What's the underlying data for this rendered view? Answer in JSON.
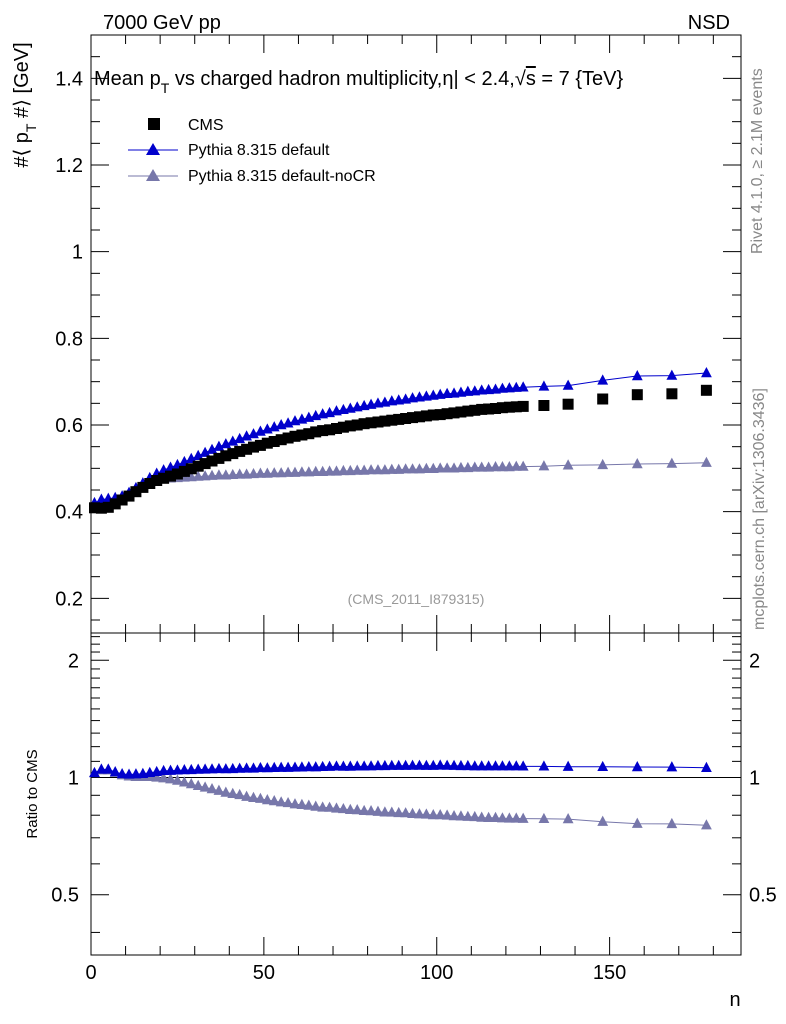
{
  "header": {
    "energy_label": "7000 GeV pp",
    "process_label": "NSD"
  },
  "side_labels": {
    "rivet": "Rivet 4.1.0, ≥ 2.1M events",
    "mcplots": "mcplots.cern.ch [arXiv:1306.3436]"
  },
  "analysis_tag": "(CMS_2011_I879315)",
  "colors": {
    "cms": "#000000",
    "default": "#0000cc",
    "nocr": "#7777aa",
    "axis": "#000000",
    "side_text": "#888888"
  },
  "chart_data": [
    {
      "type": "scatter",
      "title": "Mean p_T vs charged hadron multiplicity, |η| < 2.4, √s = 7 {TeV}",
      "title_parts": {
        "pre": "Mean p",
        "sub": "T",
        "post": " vs charged hadron multiplicity,",
        "eta": "η| < 2.4,",
        "sqrt": "√",
        "s": "s",
        "tail": " = 7 {TeV}"
      },
      "ylabel": "#⟨ p_T #⟩ [GeV]",
      "ylabel_parts": {
        "pre": "#⟨ p",
        "sub": "T",
        "post": " #⟩ [GeV]"
      },
      "xlim": [
        0,
        188
      ],
      "ylim": [
        0.12,
        1.5
      ],
      "yticks": [
        0.2,
        0.4,
        0.6,
        0.8,
        1,
        1.2,
        1.4
      ],
      "ytick_labels": [
        "0.2",
        "0.4",
        "0.6",
        "0.8",
        "1",
        "1.2",
        "1.4"
      ],
      "legend": [
        "CMS",
        "Pythia 8.315 default",
        "Pythia 8.315 default-noCR"
      ],
      "legend_position": "top-left",
      "series": [
        {
          "name": "CMS",
          "x": [
            1,
            3,
            5,
            7,
            9,
            11,
            13,
            15,
            17,
            19,
            21,
            23,
            25,
            27,
            29,
            31,
            33,
            35,
            37,
            39,
            41,
            43,
            45,
            47,
            49,
            51,
            53,
            55,
            57,
            59,
            61,
            63,
            65,
            67,
            69,
            71,
            73,
            75,
            77,
            79,
            81,
            83,
            85,
            87,
            89,
            91,
            93,
            95,
            97,
            99,
            101,
            103,
            105,
            107,
            109,
            111,
            113,
            115,
            117,
            119,
            121,
            123,
            125,
            131,
            138,
            148,
            158,
            168,
            178
          ],
          "y": [
            0.409,
            0.408,
            0.41,
            0.418,
            0.427,
            0.436,
            0.446,
            0.456,
            0.465,
            0.472,
            0.477,
            0.482,
            0.487,
            0.493,
            0.499,
            0.505,
            0.511,
            0.517,
            0.523,
            0.529,
            0.534,
            0.539,
            0.544,
            0.549,
            0.553,
            0.558,
            0.562,
            0.566,
            0.57,
            0.574,
            0.577,
            0.58,
            0.584,
            0.587,
            0.589,
            0.592,
            0.595,
            0.598,
            0.6,
            0.603,
            0.605,
            0.607,
            0.609,
            0.611,
            0.613,
            0.615,
            0.617,
            0.619,
            0.621,
            0.623,
            0.624,
            0.626,
            0.628,
            0.63,
            0.632,
            0.634,
            0.636,
            0.637,
            0.638,
            0.64,
            0.641,
            0.642,
            0.643,
            0.645,
            0.648,
            0.66,
            0.67,
            0.672,
            0.68
          ]
        },
        {
          "name": "Pythia 8.315 default",
          "x": [
            1,
            3,
            5,
            7,
            9,
            11,
            13,
            15,
            17,
            19,
            21,
            23,
            25,
            27,
            29,
            31,
            33,
            35,
            37,
            39,
            41,
            43,
            45,
            47,
            49,
            51,
            53,
            55,
            57,
            59,
            61,
            63,
            65,
            67,
            69,
            71,
            73,
            75,
            77,
            79,
            81,
            83,
            85,
            87,
            89,
            91,
            93,
            95,
            97,
            99,
            101,
            103,
            105,
            107,
            109,
            111,
            113,
            115,
            117,
            119,
            121,
            123,
            125,
            131,
            138,
            148,
            158,
            168,
            178
          ],
          "y": [
            0.42,
            0.428,
            0.43,
            0.432,
            0.436,
            0.444,
            0.455,
            0.466,
            0.478,
            0.488,
            0.496,
            0.502,
            0.508,
            0.515,
            0.522,
            0.529,
            0.536,
            0.543,
            0.55,
            0.556,
            0.562,
            0.568,
            0.574,
            0.579,
            0.585,
            0.59,
            0.595,
            0.6,
            0.604,
            0.609,
            0.613,
            0.617,
            0.621,
            0.625,
            0.628,
            0.632,
            0.635,
            0.638,
            0.641,
            0.644,
            0.647,
            0.65,
            0.652,
            0.655,
            0.657,
            0.659,
            0.662,
            0.664,
            0.666,
            0.668,
            0.67,
            0.672,
            0.673,
            0.675,
            0.677,
            0.678,
            0.68,
            0.681,
            0.682,
            0.684,
            0.685,
            0.686,
            0.687,
            0.689,
            0.691,
            0.703,
            0.713,
            0.714,
            0.72
          ]
        },
        {
          "name": "Pythia 8.315 default-noCR",
          "x": [
            1,
            3,
            5,
            7,
            9,
            11,
            13,
            15,
            17,
            19,
            21,
            23,
            25,
            27,
            29,
            31,
            33,
            35,
            37,
            39,
            41,
            43,
            45,
            47,
            49,
            51,
            53,
            55,
            57,
            59,
            61,
            63,
            65,
            67,
            69,
            71,
            73,
            75,
            77,
            79,
            81,
            83,
            85,
            87,
            89,
            91,
            93,
            95,
            97,
            99,
            101,
            103,
            105,
            107,
            109,
            111,
            113,
            115,
            117,
            119,
            121,
            123,
            125,
            131,
            138,
            148,
            158,
            168,
            178
          ],
          "y": [
            0.42,
            0.426,
            0.428,
            0.43,
            0.433,
            0.439,
            0.448,
            0.458,
            0.467,
            0.472,
            0.475,
            0.477,
            0.478,
            0.479,
            0.48,
            0.481,
            0.482,
            0.483,
            0.484,
            0.484,
            0.485,
            0.486,
            0.486,
            0.487,
            0.488,
            0.488,
            0.489,
            0.489,
            0.49,
            0.49,
            0.491,
            0.491,
            0.492,
            0.492,
            0.493,
            0.493,
            0.494,
            0.494,
            0.495,
            0.495,
            0.496,
            0.496,
            0.496,
            0.497,
            0.497,
            0.498,
            0.498,
            0.498,
            0.499,
            0.499,
            0.5,
            0.5,
            0.5,
            0.501,
            0.501,
            0.502,
            0.502,
            0.502,
            0.503,
            0.503,
            0.503,
            0.504,
            0.504,
            0.505,
            0.507,
            0.508,
            0.51,
            0.511,
            0.513
          ]
        }
      ]
    },
    {
      "type": "line",
      "ylabel": "Ratio to CMS",
      "xlabel": "n",
      "xlim": [
        0,
        188
      ],
      "ylim": [
        0.35,
        2.35
      ],
      "yscale": "log",
      "yticks": [
        0.5,
        1,
        2
      ],
      "ytick_labels": [
        "0.5",
        "1",
        "2"
      ],
      "xticks": [
        0,
        50,
        100,
        150
      ],
      "xtick_labels": [
        "0",
        "50",
        "100",
        "150"
      ],
      "reference_line": 1,
      "series": [
        {
          "name": "Pythia 8.315 default",
          "x": [
            1,
            3,
            5,
            7,
            9,
            11,
            13,
            15,
            17,
            19,
            21,
            23,
            25,
            27,
            29,
            31,
            33,
            35,
            37,
            39,
            41,
            43,
            45,
            47,
            49,
            51,
            53,
            55,
            57,
            59,
            61,
            63,
            65,
            67,
            69,
            71,
            73,
            75,
            77,
            79,
            81,
            83,
            85,
            87,
            89,
            91,
            93,
            95,
            97,
            99,
            101,
            103,
            105,
            107,
            109,
            111,
            113,
            115,
            117,
            119,
            121,
            123,
            125,
            131,
            138,
            148,
            158,
            168,
            178
          ],
          "y": [
            1.027,
            1.049,
            1.049,
            1.033,
            1.021,
            1.018,
            1.02,
            1.022,
            1.028,
            1.034,
            1.04,
            1.041,
            1.043,
            1.045,
            1.046,
            1.048,
            1.049,
            1.05,
            1.052,
            1.051,
            1.052,
            1.054,
            1.055,
            1.055,
            1.058,
            1.057,
            1.059,
            1.06,
            1.06,
            1.061,
            1.062,
            1.064,
            1.063,
            1.065,
            1.066,
            1.068,
            1.067,
            1.067,
            1.068,
            1.068,
            1.069,
            1.071,
            1.071,
            1.072,
            1.072,
            1.072,
            1.073,
            1.073,
            1.072,
            1.072,
            1.074,
            1.073,
            1.072,
            1.071,
            1.071,
            1.069,
            1.069,
            1.069,
            1.069,
            1.069,
            1.069,
            1.069,
            1.068,
            1.068,
            1.066,
            1.065,
            1.064,
            1.063,
            1.059
          ]
        },
        {
          "name": "Pythia 8.315 default-noCR",
          "x": [
            1,
            3,
            5,
            7,
            9,
            11,
            13,
            15,
            17,
            19,
            21,
            23,
            25,
            27,
            29,
            31,
            33,
            35,
            37,
            39,
            41,
            43,
            45,
            47,
            49,
            51,
            53,
            55,
            57,
            59,
            61,
            63,
            65,
            67,
            69,
            71,
            73,
            75,
            77,
            79,
            81,
            83,
            85,
            87,
            89,
            91,
            93,
            95,
            97,
            99,
            101,
            103,
            105,
            107,
            109,
            111,
            113,
            115,
            117,
            119,
            121,
            123,
            125,
            131,
            138,
            148,
            158,
            168,
            178
          ],
          "y": [
            1.027,
            1.044,
            1.044,
            1.029,
            1.014,
            1.007,
            1.004,
            1.004,
            1.004,
            1.0,
            0.996,
            0.99,
            0.982,
            0.972,
            0.962,
            0.952,
            0.943,
            0.934,
            0.925,
            0.915,
            0.908,
            0.902,
            0.893,
            0.887,
            0.882,
            0.875,
            0.87,
            0.864,
            0.86,
            0.854,
            0.851,
            0.847,
            0.842,
            0.838,
            0.837,
            0.833,
            0.83,
            0.826,
            0.825,
            0.821,
            0.82,
            0.817,
            0.814,
            0.813,
            0.811,
            0.81,
            0.807,
            0.805,
            0.804,
            0.801,
            0.801,
            0.799,
            0.796,
            0.795,
            0.793,
            0.792,
            0.789,
            0.788,
            0.788,
            0.786,
            0.785,
            0.785,
            0.784,
            0.783,
            0.782,
            0.77,
            0.761,
            0.76,
            0.754
          ]
        }
      ]
    }
  ]
}
